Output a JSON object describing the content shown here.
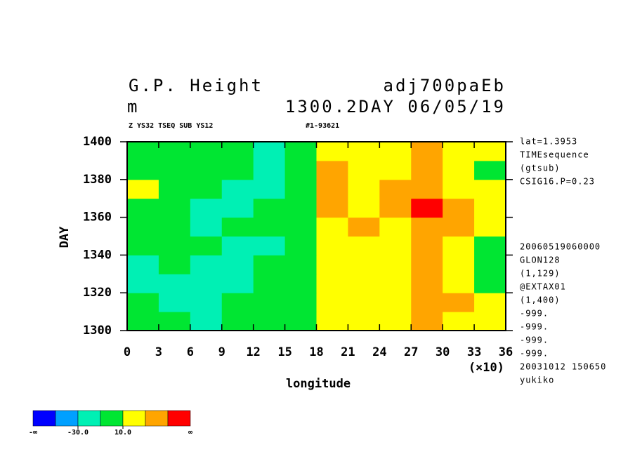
{
  "chart_data": {
    "type": "heatmap",
    "title": "G.P. Height",
    "title_right": "adj700paEb",
    "unit": "m",
    "subtitle_right": "1300.2DAY 06/05/19",
    "header_left": "Z YS32 TSEQ SUB YS12",
    "header_right": "#1-93621",
    "ylabel": "DAY",
    "xlabel": "longitude",
    "x_multiplier": "(×10)",
    "xlim": [
      0,
      36
    ],
    "ylim": [
      1300,
      1400
    ],
    "xticks": [
      0,
      3,
      6,
      9,
      12,
      15,
      18,
      21,
      24,
      27,
      30,
      33,
      36
    ],
    "yticks": [
      1300,
      1320,
      1340,
      1360,
      1380,
      1400
    ],
    "xbins": [
      0,
      3,
      6,
      9,
      12,
      15,
      18,
      21,
      24,
      27,
      30,
      33,
      36
    ],
    "ybins": [
      1300,
      1310,
      1320,
      1330,
      1340,
      1350,
      1360,
      1370,
      1380,
      1390,
      1400
    ],
    "z": [
      [
        0,
        -5,
        -15,
        -5,
        0,
        5,
        15,
        20,
        20,
        35,
        25,
        15
      ],
      [
        -5,
        -15,
        -20,
        -10,
        -5,
        0,
        15,
        15,
        25,
        45,
        30,
        10
      ],
      [
        -25,
        -20,
        -15,
        -15,
        -10,
        0,
        20,
        10,
        25,
        40,
        25,
        5
      ],
      [
        -15,
        -10,
        -20,
        -20,
        -5,
        5,
        15,
        10,
        20,
        35,
        20,
        0
      ],
      [
        5,
        -5,
        -10,
        -15,
        -15,
        -10,
        15,
        20,
        25,
        30,
        15,
        5
      ],
      [
        0,
        -10,
        -15,
        -10,
        -10,
        -5,
        25,
        30,
        25,
        45,
        35,
        15
      ],
      [
        -5,
        -10,
        -20,
        -15,
        -10,
        -5,
        30,
        25,
        30,
        55,
        35,
        15
      ],
      [
        15,
        5,
        -10,
        -25,
        -20,
        -10,
        35,
        25,
        30,
        40,
        20,
        10
      ],
      [
        0,
        -10,
        0,
        -5,
        -15,
        -10,
        40,
        15,
        20,
        30,
        15,
        5
      ],
      [
        -5,
        0,
        5,
        -10,
        -15,
        -10,
        15,
        10,
        20,
        30,
        20,
        10
      ]
    ],
    "colorbar": {
      "bounds": [
        -50,
        -30,
        -10,
        10,
        30,
        50
      ],
      "colors": [
        "#0000ff",
        "#00a0ff",
        "#00f0b4",
        "#00e632",
        "#ffff00",
        "#ffa500",
        "#ff0000"
      ],
      "low_label": "-∞",
      "high_label": "∞",
      "ticks": [
        {
          "value": -30,
          "label": "-30.0"
        },
        {
          "value": 10,
          "label": "10.0"
        }
      ]
    },
    "notes_top": [
      "lat=1.3953",
      "TIMEsequence",
      "(gtsub)",
      "CSIG16.P=0.23"
    ],
    "notes_bottom": [
      "20060519060000",
      "GLON128",
      "(1,129)",
      "@EXTAX01",
      "(1,400)",
      "-999.",
      "-999.",
      "-999.",
      "-999.",
      "20031012 150650",
      "yukiko"
    ]
  }
}
